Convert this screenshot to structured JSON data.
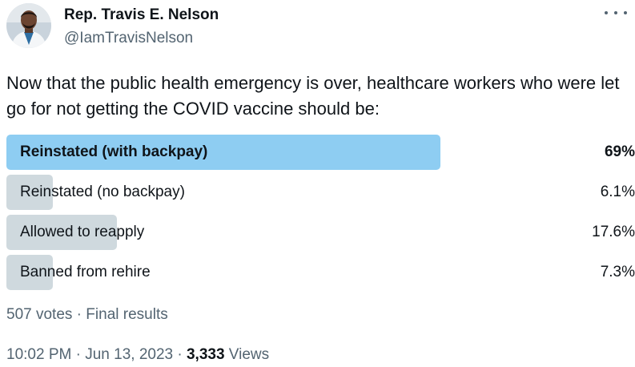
{
  "author": {
    "name": "Rep. Travis E. Nelson",
    "handle": "@IamTravisNelson"
  },
  "tweet": {
    "text": "Now that the public health emergency is over, healthcare workers who were let go for not getting the COVID vaccine should be:"
  },
  "poll": {
    "options": [
      {
        "label": "Reinstated (with backpay)",
        "percent_text": "69%",
        "percent": 69,
        "winner": true
      },
      {
        "label": "Reinstated (no backpay)",
        "percent_text": "6.1%",
        "percent": 6.1,
        "winner": false
      },
      {
        "label": "Allowed to reapply",
        "percent_text": "17.6%",
        "percent": 17.6,
        "winner": false
      },
      {
        "label": "Banned from rehire",
        "percent_text": "7.3%",
        "percent": 7.3,
        "winner": false
      }
    ],
    "votes": "507 votes",
    "separator": " · ",
    "status": "Final results"
  },
  "meta": {
    "time": "10:02 PM",
    "separator": " · ",
    "date": "Jun 13, 2023",
    "views_count": "3,333",
    "views_label": " Views"
  },
  "colors": {
    "winner_bar": "#8ecdf2",
    "other_bar": "#cfd9de",
    "secondary_text": "#536471"
  },
  "icons": {
    "avatar": "profile-avatar",
    "more": "more-options-icon"
  }
}
